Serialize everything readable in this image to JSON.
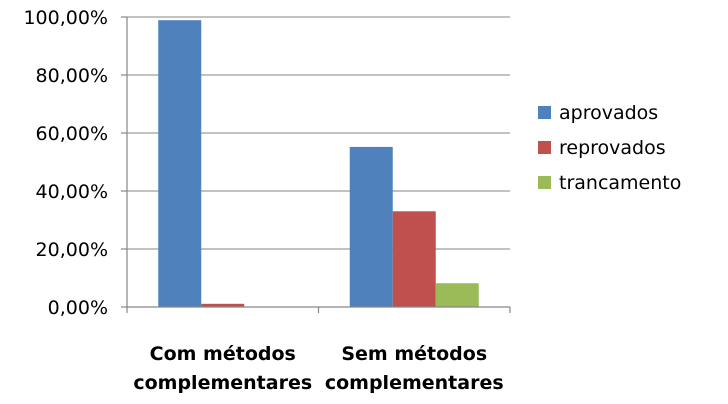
{
  "chart_data": {
    "type": "bar",
    "categories": [
      [
        "Com métodos",
        "complementares"
      ],
      [
        "Sem métodos",
        "complementares"
      ]
    ],
    "series": [
      {
        "name": "aprovados",
        "color": "#4F81BD",
        "values": [
          98.9,
          55.2
        ]
      },
      {
        "name": "reprovados",
        "color": "#C0504D",
        "values": [
          1.1,
          33.0
        ]
      },
      {
        "name": "trancamento",
        "color": "#9BBB59",
        "values": [
          0,
          8.2
        ]
      }
    ],
    "yticks": [
      "0,00%",
      "20,00%",
      "40,00%",
      "60,00%",
      "80,00%",
      "100,00%"
    ],
    "ylim": [
      0,
      100
    ],
    "grid": true,
    "legend_position": "right"
  }
}
